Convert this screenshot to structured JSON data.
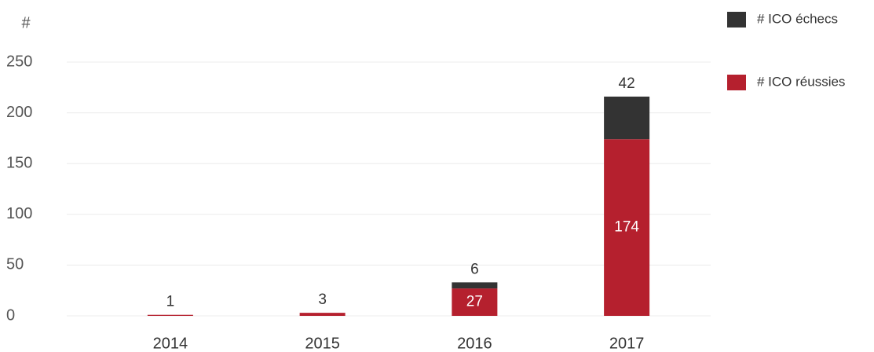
{
  "chart_data": {
    "type": "stacked_bar",
    "y_label": "#",
    "categories": [
      "2014",
      "2015",
      "2016",
      "2017"
    ],
    "series": [
      {
        "name": "# ICO réussies",
        "color": "#b5202e",
        "values": [
          1,
          3,
          27,
          174
        ]
      },
      {
        "name": "# ICO échecs",
        "color": "#333333",
        "values": [
          0,
          0,
          6,
          42
        ]
      }
    ],
    "ylim": [
      0,
      250
    ],
    "yticks": [
      0,
      50,
      100,
      150,
      200,
      250
    ],
    "grid": true
  }
}
